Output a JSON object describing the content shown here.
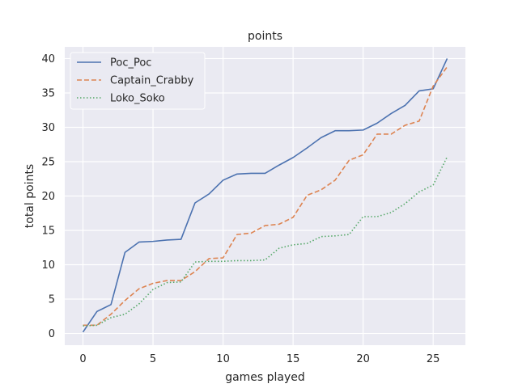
{
  "chart_data": {
    "type": "line",
    "title": "points",
    "xlabel": "games played",
    "ylabel": "total points",
    "xlim": [
      -1.3,
      27.3
    ],
    "ylim": [
      -1.7,
      41.7
    ],
    "xticks": [
      0,
      5,
      10,
      15,
      20,
      25
    ],
    "yticks": [
      0,
      5,
      10,
      15,
      20,
      25,
      30,
      35,
      40
    ],
    "grid": true,
    "legend_position": "top-left",
    "x": [
      0,
      1,
      2,
      3,
      4,
      5,
      6,
      7,
      8,
      9,
      10,
      11,
      12,
      13,
      14,
      15,
      16,
      17,
      18,
      19,
      20,
      21,
      22,
      23,
      24,
      25,
      26
    ],
    "series": [
      {
        "name": "Poc_Poc",
        "color": "#4c72b0",
        "style": "solid",
        "values": [
          0.2,
          3.2,
          4.2,
          11.8,
          13.3,
          13.4,
          13.6,
          13.7,
          19.0,
          20.3,
          22.3,
          23.2,
          23.3,
          23.3,
          24.5,
          25.6,
          27.0,
          28.5,
          29.5,
          29.5,
          29.6,
          30.6,
          32.0,
          33.2,
          35.3,
          35.6,
          40.0
        ]
      },
      {
        "name": "Captain_Crabby",
        "color": "#dd8452",
        "style": "dashed",
        "values": [
          1.2,
          1.2,
          2.8,
          4.8,
          6.5,
          7.3,
          7.7,
          7.7,
          9.0,
          10.9,
          11.0,
          14.4,
          14.6,
          15.7,
          15.9,
          16.9,
          20.1,
          20.9,
          22.3,
          25.2,
          26.0,
          29.0,
          29.0,
          30.3,
          30.9,
          36.0,
          38.8
        ]
      },
      {
        "name": "Loko_Soko",
        "color": "#55a868",
        "style": "dotted",
        "values": [
          1.1,
          1.2,
          2.3,
          2.8,
          4.3,
          6.4,
          7.4,
          7.5,
          10.4,
          10.5,
          10.5,
          10.6,
          10.6,
          10.7,
          12.4,
          12.9,
          13.1,
          14.1,
          14.2,
          14.4,
          17.0,
          17.0,
          17.6,
          18.9,
          20.6,
          21.6,
          25.7
        ]
      }
    ]
  }
}
